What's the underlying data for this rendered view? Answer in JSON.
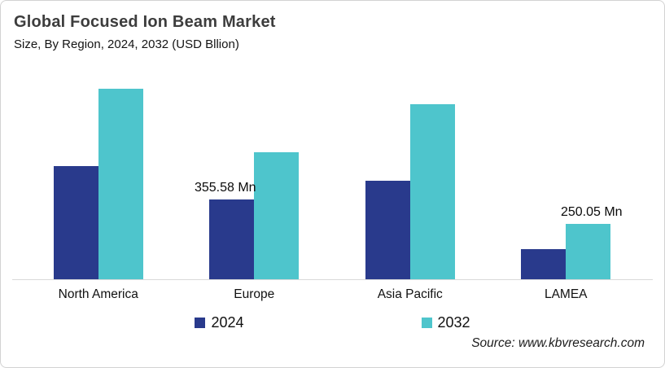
{
  "card": {
    "title": "Global Focused Ion Beam Market",
    "subtitle": "Size, By Region, 2024, 2032 (USD Bllion)",
    "source": "Source: www.kbvresearch.com"
  },
  "colors": {
    "series_2024": "#293a8c",
    "series_2032": "#4ec5cc",
    "axis_line": "#d9d9d9",
    "title_text": "#3d3d3d",
    "card_border": "#d2d2d2"
  },
  "legend": [
    {
      "label": "2024",
      "color": "#293a8c"
    },
    {
      "label": "2032",
      "color": "#4ec5cc"
    }
  ],
  "chart_data": {
    "type": "bar",
    "title": "Global Focused Ion Beam Market",
    "subtitle": "Size, By Region, 2024, 2032 (USD Bllion)",
    "unit": "USD Mn",
    "categories": [
      "North America",
      "Europe",
      "Asia Pacific",
      "LAMEA"
    ],
    "series": [
      {
        "name": "2024",
        "color": "#293a8c",
        "values": [
          505,
          355.58,
          440,
          137
        ]
      },
      {
        "name": "2032",
        "color": "#4ec5cc",
        "values": [
          845,
          567,
          776,
          250.05
        ]
      }
    ],
    "data_labels": [
      {
        "category": "Europe",
        "series": "2024",
        "text": "355.58 Mn"
      },
      {
        "category": "LAMEA",
        "series": "2032",
        "text": "250.05 Mn"
      }
    ],
    "ylim": [
      0,
      900
    ],
    "grid": false,
    "y_axis_visible": false,
    "legend_position": "bottom"
  }
}
